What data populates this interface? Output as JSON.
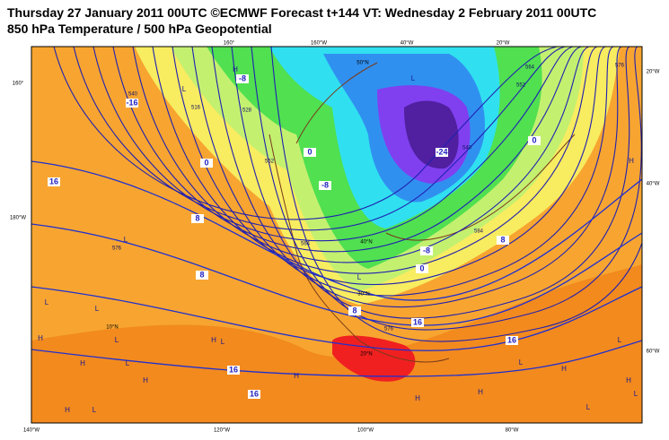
{
  "header": {
    "line1": "Thursday 27 January 2011 00UTC ©ECMWF Forecast t+144 VT: Wednesday 2 February 2011 00UTC",
    "line2": "850 hPa Temperature / 500 hPa Geopotential"
  },
  "map": {
    "grid_labels": [
      "160°",
      "160°W",
      "40°W",
      "20°W",
      "160°",
      "180°W",
      "20°W",
      "40°W",
      "60°W",
      "140°W",
      "120°W",
      "100°W",
      "80°W",
      "50°N",
      "40°N",
      "30°N",
      "20°N",
      "10°N"
    ],
    "temperature_labels": [
      "-8",
      "-16",
      "0",
      "0",
      "-8",
      "-8",
      "0",
      "0",
      "8",
      "8",
      "8",
      "8",
      "16",
      "16",
      "16",
      "16",
      "16",
      "-24"
    ],
    "geopotential_labels": [
      "576",
      "540",
      "528",
      "516",
      "552",
      "564",
      "576",
      "584",
      "576",
      "564",
      "552",
      "540"
    ],
    "pressure_centers": [
      "H",
      "L",
      "L",
      "H",
      "L",
      "L",
      "L",
      "H",
      "L",
      "L",
      "H",
      "L",
      "H",
      "H",
      "L",
      "L",
      "H",
      "H",
      "H",
      "L",
      "H",
      "H",
      "L",
      "L",
      "H",
      "L"
    ]
  }
}
